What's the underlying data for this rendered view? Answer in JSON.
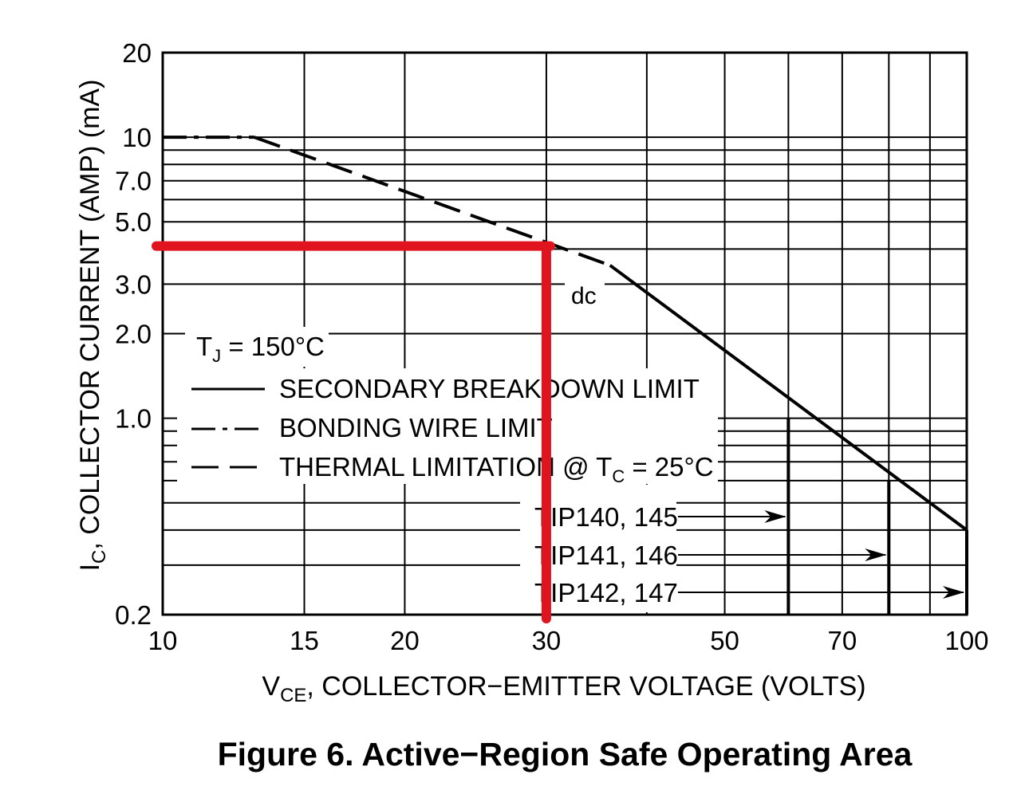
{
  "chart_data": {
    "type": "line",
    "x_scale": "log",
    "y_scale": "log",
    "xlim": [
      10,
      100
    ],
    "ylim": [
      0.2,
      20
    ],
    "x_ticks": [
      10,
      15,
      20,
      30,
      50,
      70,
      100
    ],
    "x_tick_labels": [
      "10",
      "15",
      "20",
      "30",
      "50",
      "70",
      "100"
    ],
    "y_ticks": [
      0.2,
      1.0,
      2.0,
      3.0,
      5.0,
      7.0,
      10,
      20
    ],
    "y_tick_labels": [
      "0.2",
      "1.0",
      "2.0",
      "3.0",
      "5.0",
      "7.0",
      "10",
      "20"
    ],
    "x_gridlines": [
      10,
      15,
      20,
      30,
      40,
      50,
      60,
      70,
      80,
      90,
      100
    ],
    "y_gridlines": [
      0.2,
      0.3,
      0.4,
      0.5,
      0.6,
      0.7,
      0.8,
      0.9,
      1.0,
      2.0,
      3.0,
      4.0,
      5.0,
      6.0,
      7.0,
      8.0,
      9.0,
      10,
      20
    ],
    "grid": true,
    "xlabel": {
      "main": "V",
      "sub": "CE",
      "rest": ", COLLECTOR−EMITTER VOLTAGE (VOLTS)"
    },
    "ylabel": {
      "main": "I",
      "sub": "C",
      "rest": ", COLLECTOR CURRENT (AMP) (mA)"
    },
    "caption": "Figure 6. Active−Region Safe Operating Area",
    "series": [
      {
        "style": "dash-dot",
        "points": [
          [
            10,
            10
          ],
          [
            13,
            10
          ]
        ]
      },
      {
        "style": "dashed",
        "points": [
          [
            13,
            10
          ],
          [
            36,
            3.5
          ]
        ]
      },
      {
        "style": "solid",
        "points": [
          [
            36,
            3.5
          ],
          [
            100,
            0.4
          ]
        ]
      }
    ],
    "annotations": {
      "dc": "dc",
      "tj": {
        "main": "T",
        "sub": "J",
        "rest": " = 150°C"
      },
      "legend": [
        {
          "style": "solid",
          "label": "SECONDARY BREAKDOWN LIMIT"
        },
        {
          "style": "dash-dot",
          "label": "BONDING WIRE LIMIT"
        },
        {
          "style": "dashed",
          "label": "THERMAL LIMITATION @ T",
          "sub": "C",
          "rest": " = 25°C"
        }
      ],
      "device_limits": [
        {
          "label": "TIP140, 145",
          "v": 60,
          "i_top": 1.0
        },
        {
          "label": "TIP141, 146",
          "v": 80,
          "i_top": 0.6
        },
        {
          "label": "TIP142, 147",
          "v": 100,
          "i_top": 0.4
        }
      ],
      "highlight": {
        "v": 30,
        "i": 4.1,
        "color": "#e0141e"
      }
    }
  }
}
